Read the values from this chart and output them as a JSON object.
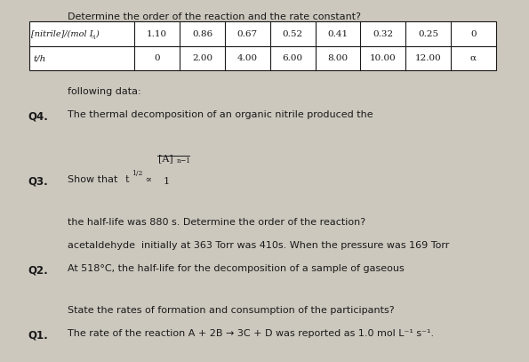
{
  "background_color": "#cdc8be",
  "text_color": "#1a1a1a",
  "q1_label": "Q1.",
  "q1_line1": "The rate of the reaction A + 2B → 3C + D was reported as 1.0 mol L⁻¹ s⁻¹.",
  "q1_line2": "State the rates of formation and consumption of the participants?",
  "q2_label": "Q2.",
  "q2_line1": "At 518°C, the half-life for the decomposition of a sample of gaseous",
  "q2_line2": "acetaldehyde  initially at 363 Torr was 410s. When the pressure was 169 Torr",
  "q2_line3": "the half-life was 880 s. Determine the order of the reaction?",
  "q3_label": "Q3.",
  "q4_label": "Q4.",
  "q4_line1": "The thermal decomposition of an organic nitrile produced the",
  "q4_line2": "following data:",
  "table_t_values": [
    "0",
    "2.00",
    "4.00",
    "6.00",
    "8.00",
    "10.00",
    "12.00",
    "α"
  ],
  "table_c_values": [
    "1.10",
    "0.86",
    "0.67",
    "0.52",
    "0.41",
    "0.32",
    "0.25",
    "0"
  ],
  "q4_bottom": "Determine the order of the reaction and the rate constant?",
  "label_fontsize": 8.5,
  "text_fontsize": 8.0,
  "table_fontsize": 7.5
}
